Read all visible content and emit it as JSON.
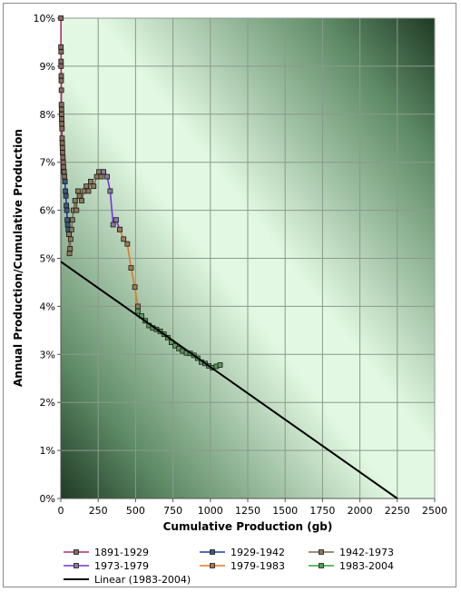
{
  "chart_data": {
    "type": "scatter",
    "title": "",
    "xlabel": "Cumulative Production (gb)",
    "ylabel": "Annual Production/Cumulative Production",
    "xlim": [
      0,
      2500
    ],
    "ylim": [
      0,
      0.1
    ],
    "x_ticks": [
      "0",
      "250",
      "500",
      "750",
      "1000",
      "1250",
      "1500",
      "1750",
      "2000",
      "2250",
      "2500"
    ],
    "y_ticks": [
      "0%",
      "1%",
      "2%",
      "3%",
      "4%",
      "5%",
      "6%",
      "7%",
      "8%",
      "9%",
      "10%"
    ],
    "grid": true,
    "legend_position": "bottom",
    "series": [
      {
        "name": "1891-1929",
        "color": "#b0306a",
        "marker_color": "#8a6a5a",
        "x": [
          1,
          1,
          2,
          2,
          2,
          3,
          3,
          4,
          4,
          5,
          5,
          6,
          7,
          8,
          9,
          10,
          11,
          12,
          14,
          16,
          18,
          20,
          22,
          25,
          28
        ],
        "y": [
          0.1,
          0.094,
          0.093,
          0.091,
          0.09,
          0.088,
          0.087,
          0.085,
          0.082,
          0.081,
          0.08,
          0.079,
          0.078,
          0.077,
          0.075,
          0.074,
          0.073,
          0.072,
          0.071,
          0.07,
          0.069,
          0.068,
          0.068,
          0.067,
          0.066
        ]
      },
      {
        "name": "1929-1942",
        "color": "#2233bb",
        "marker_color": "#3a5a7a",
        "x": [
          28,
          31,
          34,
          37,
          40,
          43,
          46,
          50,
          54
        ],
        "y": [
          0.066,
          0.064,
          0.063,
          0.061,
          0.06,
          0.058,
          0.057,
          0.056,
          0.055
        ]
      },
      {
        "name": "1942-1973",
        "color": "#7a6a50",
        "marker_color": "#8a7a5a",
        "x": [
          54,
          58,
          62,
          66,
          72,
          78,
          85,
          95,
          105,
          115,
          125,
          140,
          155,
          170,
          185,
          200,
          220,
          240,
          255,
          270,
          285
        ],
        "y": [
          0.055,
          0.051,
          0.052,
          0.054,
          0.056,
          0.058,
          0.06,
          0.062,
          0.06,
          0.064,
          0.063,
          0.062,
          0.064,
          0.065,
          0.064,
          0.066,
          0.065,
          0.067,
          0.068,
          0.067,
          0.068
        ]
      },
      {
        "name": "1973-1979",
        "color": "#7a30dd",
        "marker_color": "#8a7aa0",
        "x": [
          285,
          310,
          330,
          350,
          370,
          395
        ],
        "y": [
          0.068,
          0.067,
          0.064,
          0.057,
          0.058,
          0.056
        ]
      },
      {
        "name": "1979-1983",
        "color": "#e07a20",
        "marker_color": "#a07a5a",
        "x": [
          395,
          420,
          445,
          470,
          495,
          515
        ],
        "y": [
          0.056,
          0.054,
          0.053,
          0.048,
          0.044,
          0.04
        ]
      },
      {
        "name": "1983-2004",
        "color": "#2eaa2e",
        "marker_color": "#5a9a5a",
        "x": [
          515,
          540,
          565,
          590,
          615,
          640,
          665,
          690,
          715,
          740,
          765,
          790,
          815,
          840,
          865,
          890,
          915,
          940,
          965,
          990,
          1015,
          1040,
          1065
        ],
        "y": [
          0.039,
          0.038,
          0.037,
          0.036,
          0.0355,
          0.0352,
          0.0348,
          0.0342,
          0.0335,
          0.0325,
          0.0318,
          0.0312,
          0.0307,
          0.0303,
          0.0302,
          0.0298,
          0.0292,
          0.0284,
          0.0281,
          0.0276,
          0.0272,
          0.0275,
          0.0278
        ]
      },
      {
        "name": "Linear (1983-2004)",
        "type": "line",
        "color": "#000000",
        "x": [
          0,
          2250
        ],
        "y": [
          0.0493,
          0.0
        ]
      }
    ]
  }
}
